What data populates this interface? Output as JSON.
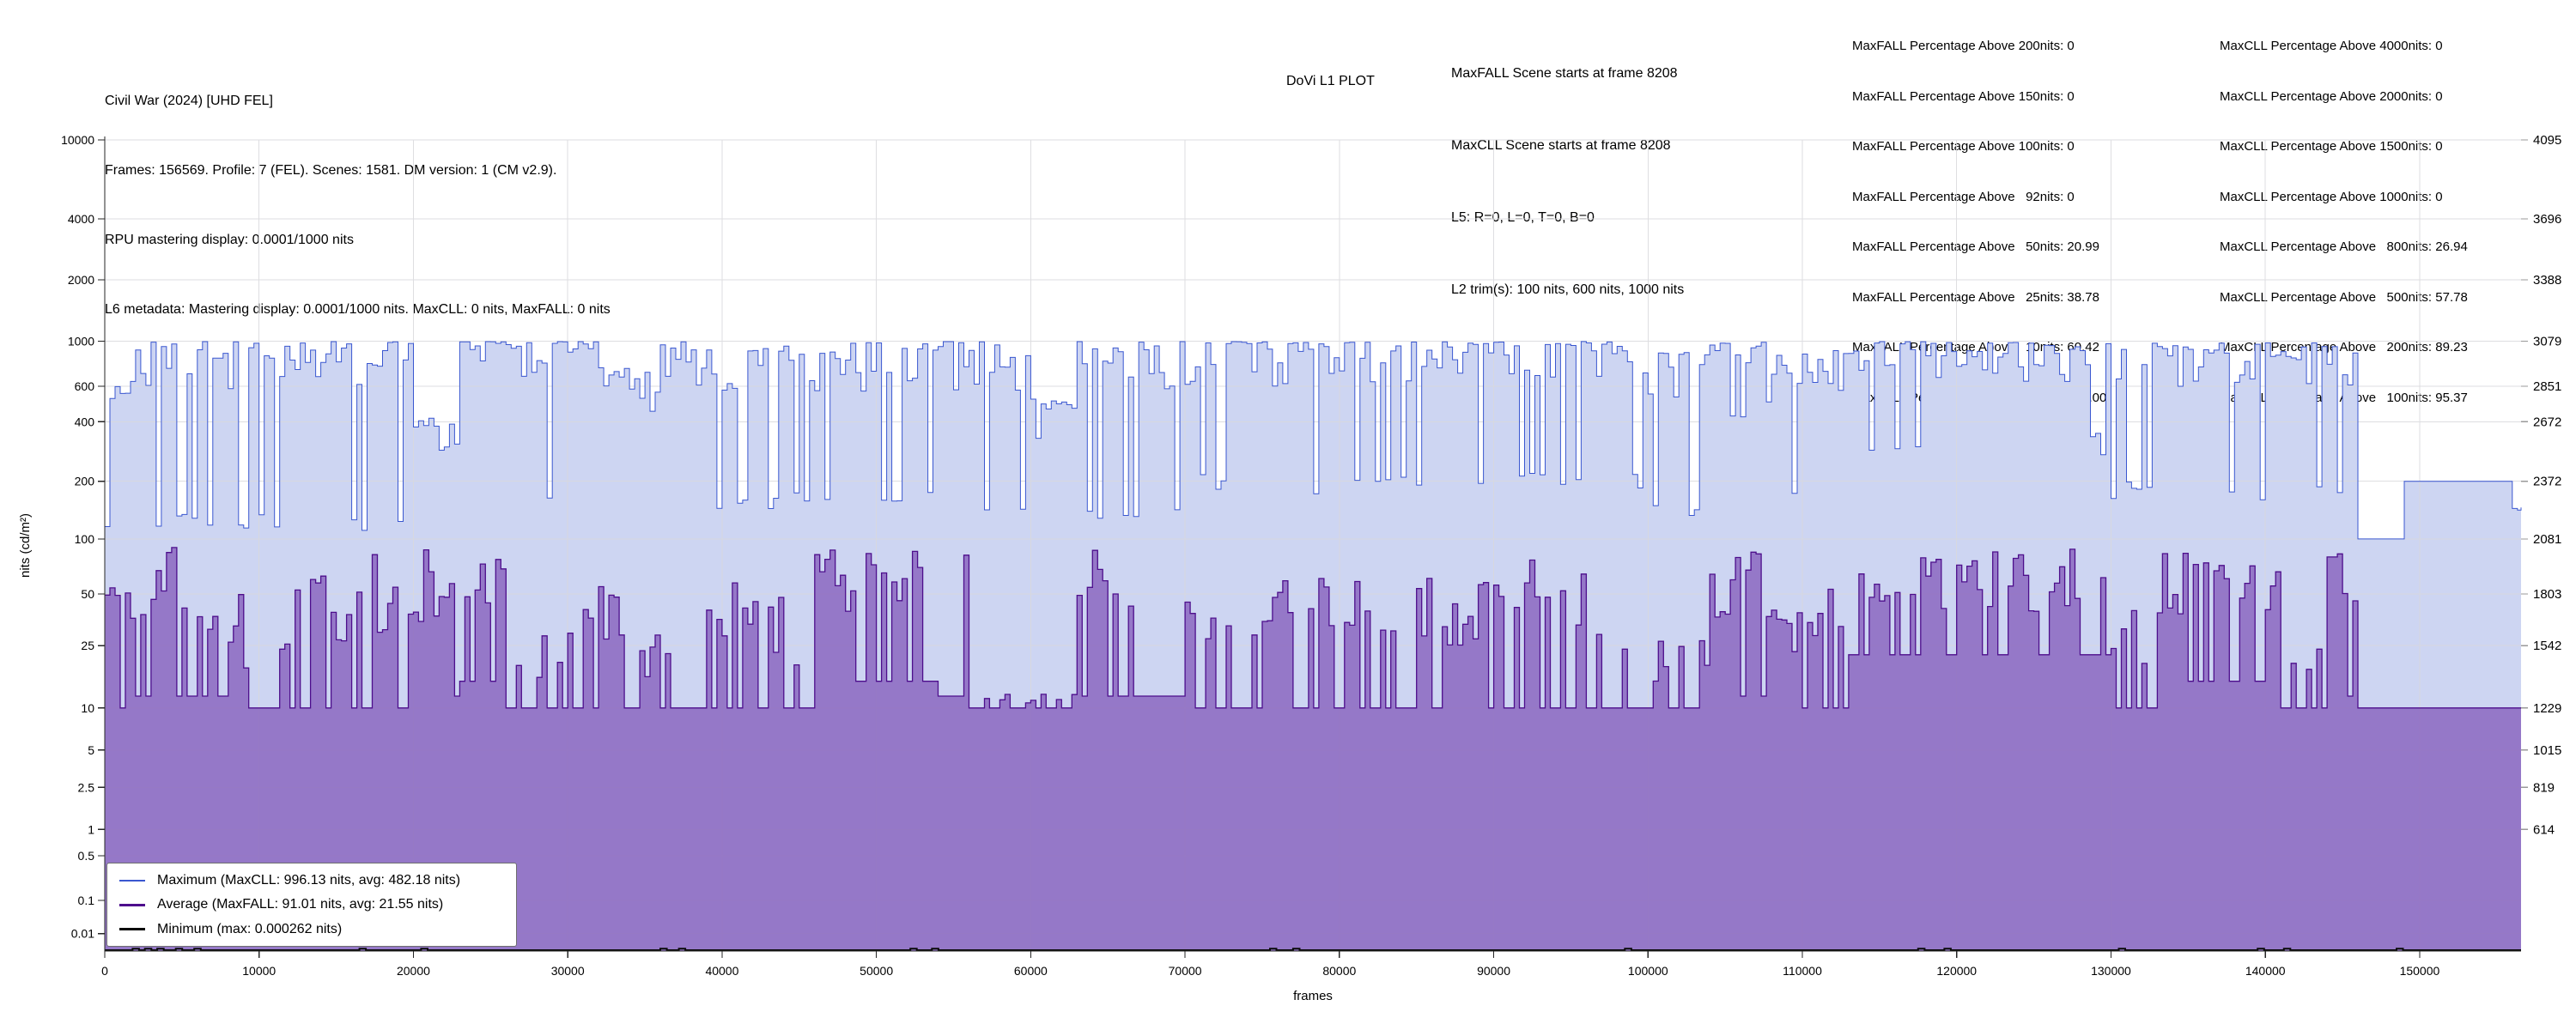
{
  "header": {
    "line1": "Civil War (2024) [UHD FEL]",
    "line2": "Frames: 156569. Profile: 7 (FEL). Scenes: 1581. DM version: 1 (CM v2.9).",
    "line3": "RPU mastering display: 0.0001/1000 nits",
    "line4": "L6 metadata: Mastering display: 0.0001/1000 nits. MaxCLL: 0 nits, MaxFALL: 0 nits",
    "plot_label": "DoVi L1 PLOT",
    "scene_info": [
      "MaxFALL Scene starts at frame 8208",
      "MaxCLL Scene starts at frame 8208",
      "L5: R=0, L=0, T=0, B=0",
      "L2 trim(s): 100 nits, 600 nits, 1000 nits"
    ],
    "maxfall_stats": [
      "MaxFALL Percentage Above 200nits: 0",
      "MaxFALL Percentage Above 150nits: 0",
      "MaxFALL Percentage Above 100nits: 0",
      "MaxFALL Percentage Above   92nits: 0",
      "MaxFALL Percentage Above   50nits: 20.99",
      "MaxFALL Percentage Above   25nits: 38.78",
      "MaxFALL Percentage Above   10nits: 60.42",
      "MaxFALL Percentage Above  2.5nits: 100.00"
    ],
    "maxcll_stats": [
      "MaxCLL Percentage Above 4000nits: 0",
      "MaxCLL Percentage Above 2000nits: 0",
      "MaxCLL Percentage Above 1500nits: 0",
      "MaxCLL Percentage Above 1000nits: 0",
      "MaxCLL Percentage Above   800nits: 26.94",
      "MaxCLL Percentage Above   500nits: 57.78",
      "MaxCLL Percentage Above   200nits: 89.23",
      "MaxCLL Percentage Above   100nits: 95.37"
    ]
  },
  "legend": {
    "items": [
      {
        "label": "Maximum (MaxCLL: 996.13 nits, avg: 482.18 nits)",
        "color": "#3a57d0",
        "weight": 2
      },
      {
        "label": "Average (MaxFALL: 91.01 nits, avg: 21.55 nits)",
        "color": "#4d0e8c",
        "weight": 3
      },
      {
        "label": "Minimum (max: 0.000262 nits)",
        "color": "#0a0a0a",
        "weight": 3
      }
    ]
  },
  "chart_data": {
    "type": "area",
    "title": "DoVi L1 PLOT",
    "xlabel": "frames",
    "ylabel": "nits (cd/m²)",
    "x_range": [
      0,
      156569
    ],
    "x_ticks": [
      0,
      10000,
      20000,
      30000,
      40000,
      50000,
      60000,
      70000,
      80000,
      90000,
      100000,
      110000,
      120000,
      130000,
      140000,
      150000
    ],
    "y_scale": "pq-linear (12-bit code)",
    "y_ticks": [
      {
        "nits": 10000,
        "label": "10000",
        "pq_label": "4095"
      },
      {
        "nits": 4000,
        "label": "4000",
        "pq_label": "3696"
      },
      {
        "nits": 2000,
        "label": "2000",
        "pq_label": "3388"
      },
      {
        "nits": 1000,
        "label": "1000",
        "pq_label": "3079"
      },
      {
        "nits": 600,
        "label": "600",
        "pq_label": "2851"
      },
      {
        "nits": 400,
        "label": "400",
        "pq_label": "2672"
      },
      {
        "nits": 200,
        "label": "200",
        "pq_label": "2372"
      },
      {
        "nits": 100,
        "label": "100",
        "pq_label": "2081"
      },
      {
        "nits": 50,
        "label": "50",
        "pq_label": "1803"
      },
      {
        "nits": 25,
        "label": "25",
        "pq_label": "1542"
      },
      {
        "nits": 10,
        "label": "10",
        "pq_label": "1229"
      },
      {
        "nits": 5,
        "label": "5",
        "pq_label": "1015"
      },
      {
        "nits": 2.5,
        "label": "2.5",
        "pq_label": "819"
      },
      {
        "nits": 1,
        "label": "1",
        "pq_label": "614"
      },
      {
        "nits": 0.5,
        "label": "0.5",
        "pq_label": ""
      },
      {
        "nits": 0.1,
        "label": "0.1",
        "pq_label": ""
      },
      {
        "nits": 0.01,
        "label": "0.01",
        "pq_label": ""
      }
    ],
    "grid": true,
    "legend_position": "lower-left",
    "bucket_frames": 1000,
    "noise_seed": 1337,
    "colors": {
      "max_line": "#3a57d0",
      "max_fill": "#cdd5f2",
      "avg_line": "#4d0e8c",
      "avg_fill": "#8d6bc1",
      "min_line": "#0a0a0a",
      "grid": "#d9d9dc",
      "spine": "#262626",
      "right_tick": "#999999"
    },
    "series": [
      {
        "name": "Maximum",
        "maxcll_nits": 996.13,
        "avg_nits": 482.18,
        "env_rle_1000f_hi_lo": [
          [
            2,
            650,
            110
          ],
          [
            18,
            996,
            110
          ],
          [
            3,
            420,
            100
          ],
          [
            3,
            996,
            680
          ],
          [
            6,
            996,
            130
          ],
          [
            4,
            760,
            120
          ],
          [
            22,
            996,
            140
          ],
          [
            2,
            850,
            130
          ],
          [
            3,
            520,
            100
          ],
          [
            7,
            996,
            110
          ],
          [
            30,
            996,
            170
          ],
          [
            4,
            880,
            130
          ],
          [
            4,
            996,
            420
          ],
          [
            5,
            930,
            140
          ],
          [
            17,
            996,
            270
          ],
          [
            16,
            996,
            160
          ],
          [
            3,
            100,
            100
          ],
          [
            7,
            200,
            200
          ],
          [
            1,
            150,
            100
          ]
        ]
      },
      {
        "name": "Average",
        "maxfall_nits": 91.01,
        "avg_nits": 21.55,
        "env_rle_1000f_hi_lo": [
          [
            2,
            55,
            10
          ],
          [
            3,
            91,
            12
          ],
          [
            4,
            60,
            12
          ],
          [
            3,
            28,
            10
          ],
          [
            5,
            65,
            10
          ],
          [
            3,
            85,
            10
          ],
          [
            3,
            88,
            12
          ],
          [
            3,
            78,
            15
          ],
          [
            5,
            30,
            10
          ],
          [
            3,
            58,
            10
          ],
          [
            5,
            30,
            10
          ],
          [
            5,
            58,
            10
          ],
          [
            2,
            32,
            10
          ],
          [
            8,
            91,
            15
          ],
          [
            2,
            89,
            12
          ],
          [
            7,
            13,
            10
          ],
          [
            7,
            88,
            12
          ],
          [
            6,
            52,
            10
          ],
          [
            7,
            62,
            10
          ],
          [
            7,
            70,
            10
          ],
          [
            7,
            82,
            10
          ],
          [
            7,
            27,
            10
          ],
          [
            4,
            89,
            12
          ],
          [
            5,
            56,
            10
          ],
          [
            17,
            93,
            22
          ],
          [
            3,
            45,
            10
          ],
          [
            8,
            87,
            15
          ],
          [
            3,
            35,
            10
          ],
          [
            1,
            88,
            80
          ],
          [
            1,
            55,
            12
          ],
          [
            11,
            10,
            10
          ]
        ]
      },
      {
        "name": "Minimum",
        "max_nits": 0.000262,
        "baseline_nits": 5e-05,
        "bump_nits": 0.00026,
        "bump_frames": [
          1800,
          2600,
          3400,
          4600,
          5800,
          16500,
          20500,
          36000,
          37200,
          52200,
          53600,
          75500,
          77000,
          98500,
          117500,
          119200,
          130500,
          139500,
          141200,
          148500
        ]
      }
    ]
  }
}
